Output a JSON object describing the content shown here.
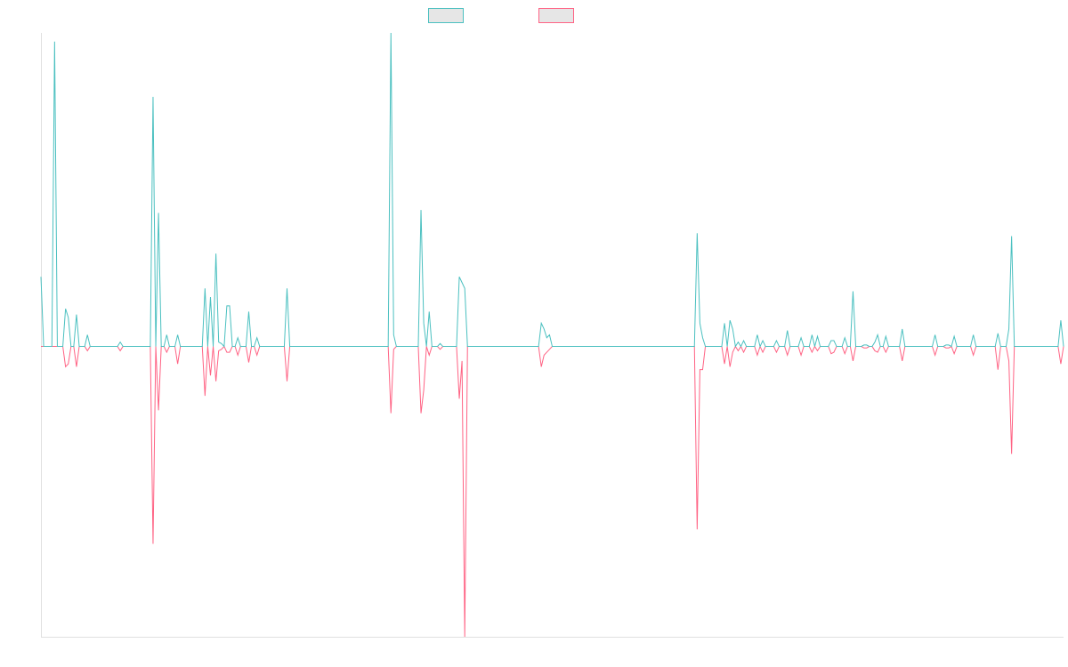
{
  "chart_data": {
    "type": "line",
    "title": "",
    "xlabel": "",
    "ylabel": "",
    "grid": false,
    "legend_position": "top-center",
    "ylim": [
      -1.0,
      1.08
    ],
    "series": [
      {
        "color": "#4bc0c0",
        "values": [
          0.24,
          0,
          0,
          0,
          0,
          1.05,
          0,
          0,
          0,
          0.13,
          0.1,
          0,
          0,
          0.11,
          0,
          0,
          0,
          0.04,
          0,
          0,
          0,
          0,
          0,
          0,
          0,
          0,
          0,
          0,
          0,
          0.015,
          0,
          0,
          0,
          0,
          0,
          0,
          0,
          0,
          0,
          0,
          0,
          0.86,
          0,
          0.46,
          0,
          0,
          0.04,
          0,
          0,
          0,
          0.04,
          0,
          0,
          0,
          0,
          0,
          0,
          0,
          0,
          0,
          0.2,
          0,
          0.17,
          0,
          0.32,
          0.015,
          0.01,
          0,
          0.14,
          0.14,
          0,
          0,
          0.03,
          0,
          0,
          0,
          0.12,
          0,
          0,
          0.03,
          0,
          0,
          0,
          0,
          0,
          0,
          0,
          0,
          0,
          0,
          0.2,
          0,
          0,
          0,
          0,
          0,
          0,
          0,
          0,
          0,
          0,
          0,
          0,
          0,
          0,
          0,
          0,
          0,
          0,
          0,
          0,
          0,
          0,
          0,
          0,
          0,
          0,
          0,
          0,
          0,
          0,
          0,
          0,
          0,
          0,
          0,
          0,
          0,
          1.08,
          0.04,
          0,
          0,
          0,
          0,
          0,
          0,
          0,
          0,
          0,
          0.47,
          0.08,
          0,
          0.12,
          0,
          0,
          0,
          0.01,
          0,
          0,
          0,
          0,
          0,
          0,
          0.24,
          0.22,
          0.2,
          0,
          0,
          0,
          0,
          0,
          0,
          0,
          0,
          0,
          0,
          0,
          0,
          0,
          0,
          0,
          0,
          0,
          0,
          0,
          0,
          0,
          0,
          0,
          0,
          0,
          0,
          0,
          0.08,
          0.06,
          0.03,
          0.04,
          0,
          0,
          0,
          0,
          0,
          0,
          0,
          0,
          0,
          0,
          0,
          0,
          0,
          0,
          0,
          0,
          0,
          0,
          0,
          0,
          0,
          0,
          0,
          0,
          0,
          0,
          0,
          0,
          0,
          0,
          0,
          0,
          0,
          0,
          0,
          0,
          0,
          0,
          0,
          0,
          0,
          0,
          0,
          0,
          0,
          0,
          0,
          0,
          0,
          0,
          0,
          0,
          0,
          0.39,
          0.08,
          0.03,
          0,
          0,
          0,
          0,
          0,
          0,
          0,
          0.08,
          0,
          0.09,
          0.06,
          0,
          0.015,
          0,
          0.02,
          0,
          0,
          0,
          0,
          0.04,
          0,
          0.02,
          0,
          0,
          0,
          0,
          0.02,
          0,
          0,
          0,
          0.055,
          0,
          0,
          0,
          0,
          0.03,
          0,
          0,
          0,
          0.04,
          0,
          0.035,
          0,
          0,
          0,
          0,
          0.02,
          0.02,
          0,
          0,
          0,
          0.03,
          0,
          0,
          0.19,
          0,
          0,
          0,
          0.005,
          0.005,
          0,
          0,
          0.015,
          0.04,
          0,
          0,
          0.035,
          0,
          0,
          0,
          0,
          0,
          0.06,
          0,
          0,
          0,
          0,
          0,
          0,
          0,
          0,
          0,
          0,
          0,
          0.04,
          0,
          0,
          0,
          0.005,
          0.005,
          0,
          0.035,
          0,
          0,
          0,
          0,
          0,
          0,
          0.04,
          0,
          0,
          0,
          0,
          0,
          0,
          0,
          0,
          0.045,
          0,
          0,
          0,
          0.06,
          0.38,
          0,
          0,
          0,
          0,
          0,
          0,
          0,
          0,
          0,
          0,
          0,
          0,
          0,
          0,
          0,
          0,
          0,
          0.09,
          0
        ],
        "x_count": 354
      },
      {
        "color": "#ff6384",
        "values": [
          0,
          0,
          0,
          0,
          0,
          0,
          0,
          0,
          0,
          -0.07,
          -0.06,
          0,
          0,
          -0.07,
          0,
          0,
          0,
          -0.015,
          0,
          0,
          0,
          0,
          0,
          0,
          0,
          0,
          0,
          0,
          0,
          -0.015,
          0,
          0,
          0,
          0,
          0,
          0,
          0,
          0,
          0,
          0,
          0,
          -0.68,
          0,
          -0.22,
          0,
          0,
          -0.02,
          0,
          0,
          0,
          -0.06,
          0,
          0,
          0,
          0,
          0,
          0,
          0,
          0,
          0,
          -0.17,
          0,
          -0.1,
          0,
          -0.12,
          -0.015,
          -0.01,
          0,
          -0.02,
          -0.02,
          0,
          0,
          -0.03,
          0,
          0,
          0,
          -0.055,
          0,
          0,
          -0.03,
          0,
          0,
          0,
          0,
          0,
          0,
          0,
          0,
          0,
          0,
          -0.12,
          0,
          0,
          0,
          0,
          0,
          0,
          0,
          0,
          0,
          0,
          0,
          0,
          0,
          0,
          0,
          0,
          0,
          0,
          0,
          0,
          0,
          0,
          0,
          0,
          0,
          0,
          0,
          0,
          0,
          0,
          0,
          0,
          0,
          0,
          0,
          0,
          0,
          -0.23,
          -0.01,
          0,
          0,
          0,
          0,
          0,
          0,
          0,
          0,
          0,
          -0.23,
          -0.15,
          0,
          -0.03,
          0,
          0,
          0,
          -0.01,
          0,
          0,
          0,
          0,
          0,
          0,
          -0.18,
          -0.05,
          -1.0,
          0,
          0,
          0,
          0,
          0,
          0,
          0,
          0,
          0,
          0,
          0,
          0,
          0,
          0,
          0,
          0,
          0,
          0,
          0,
          0,
          0,
          0,
          0,
          0,
          0,
          0,
          0,
          -0.07,
          -0.03,
          -0.02,
          -0.01,
          0,
          0,
          0,
          0,
          0,
          0,
          0,
          0,
          0,
          0,
          0,
          0,
          0,
          0,
          0,
          0,
          0,
          0,
          0,
          0,
          0,
          0,
          0,
          0,
          0,
          0,
          0,
          0,
          0,
          0,
          0,
          0,
          0,
          0,
          0,
          0,
          0,
          0,
          0,
          0,
          0,
          0,
          0,
          0,
          0,
          0,
          0,
          0,
          0,
          0,
          0,
          0,
          0,
          -0.63,
          -0.08,
          -0.08,
          0,
          0,
          0,
          0,
          0,
          0,
          0,
          -0.06,
          0,
          -0.07,
          -0.02,
          0,
          -0.015,
          0,
          -0.02,
          0,
          0,
          0,
          0,
          -0.03,
          0,
          -0.02,
          0,
          0,
          0,
          0,
          -0.02,
          0,
          0,
          0,
          -0.03,
          0,
          0,
          0,
          0,
          -0.03,
          0,
          0,
          0,
          -0.02,
          0,
          -0.015,
          0,
          0,
          0,
          0,
          -0.025,
          -0.02,
          0,
          0,
          0,
          -0.025,
          0,
          0,
          -0.05,
          0,
          0,
          0,
          -0.005,
          -0.005,
          0,
          0,
          -0.015,
          -0.02,
          0,
          0,
          -0.02,
          0,
          0,
          0,
          0,
          0,
          -0.05,
          0,
          0,
          0,
          0,
          0,
          0,
          0,
          0,
          0,
          0,
          0,
          -0.03,
          0,
          0,
          0,
          -0.005,
          -0.005,
          0,
          -0.025,
          0,
          0,
          0,
          0,
          0,
          0,
          -0.03,
          0,
          0,
          0,
          0,
          0,
          0,
          0,
          0,
          -0.08,
          0,
          0,
          0,
          -0.05,
          -0.37,
          0,
          0,
          0,
          0,
          0,
          0,
          0,
          0,
          0,
          0,
          0,
          0,
          0,
          0,
          0,
          0,
          0,
          -0.06,
          0
        ],
        "x_count": 354
      }
    ]
  }
}
